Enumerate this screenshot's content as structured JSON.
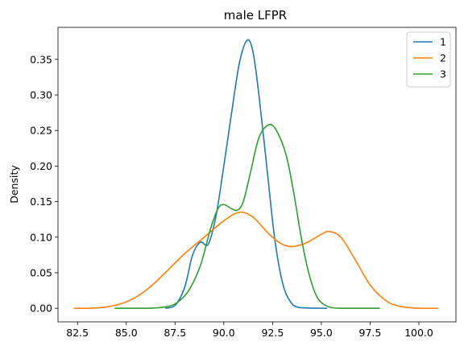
{
  "chart_data": {
    "type": "line",
    "title": "male LFPR",
    "xlabel": "",
    "ylabel": "Density",
    "xlim": [
      81.5,
      101.9
    ],
    "ylim": [
      -0.019,
      0.395
    ],
    "x_ticks": [
      82.5,
      85.0,
      87.5,
      90.0,
      92.5,
      95.0,
      97.5,
      100.0
    ],
    "x_tick_labels": [
      "82.5",
      "85.0",
      "87.5",
      "90.0",
      "92.5",
      "95.0",
      "97.5",
      "100.0"
    ],
    "y_ticks": [
      0.0,
      0.05,
      0.1,
      0.15,
      0.2,
      0.25,
      0.3,
      0.35
    ],
    "y_tick_labels": [
      "0.00",
      "0.05",
      "0.10",
      "0.15",
      "0.20",
      "0.25",
      "0.30",
      "0.35"
    ],
    "grid": false,
    "legend_position": "top-right",
    "series": [
      {
        "name": "1",
        "color": "#1f77b4",
        "points": [
          [
            87.0,
            0.0
          ],
          [
            87.5,
            0.004
          ],
          [
            88.0,
            0.03
          ],
          [
            88.4,
            0.075
          ],
          [
            88.8,
            0.093
          ],
          [
            89.2,
            0.09
          ],
          [
            89.6,
            0.13
          ],
          [
            90.0,
            0.2
          ],
          [
            90.4,
            0.275
          ],
          [
            90.8,
            0.345
          ],
          [
            91.2,
            0.377
          ],
          [
            91.5,
            0.36
          ],
          [
            91.8,
            0.3
          ],
          [
            92.2,
            0.2
          ],
          [
            92.6,
            0.1
          ],
          [
            93.0,
            0.037
          ],
          [
            93.4,
            0.01
          ],
          [
            93.9,
            0.001
          ],
          [
            95.3,
            0.0
          ]
        ]
      },
      {
        "name": "2",
        "color": "#ff7f0e",
        "points": [
          [
            82.3,
            0.0
          ],
          [
            83.0,
            0.0
          ],
          [
            84.0,
            0.002
          ],
          [
            85.0,
            0.009
          ],
          [
            86.0,
            0.025
          ],
          [
            87.0,
            0.05
          ],
          [
            88.0,
            0.077
          ],
          [
            89.0,
            0.1
          ],
          [
            90.0,
            0.123
          ],
          [
            90.8,
            0.135
          ],
          [
            91.5,
            0.128
          ],
          [
            92.3,
            0.105
          ],
          [
            93.0,
            0.09
          ],
          [
            93.6,
            0.087
          ],
          [
            94.3,
            0.093
          ],
          [
            95.0,
            0.104
          ],
          [
            95.4,
            0.108
          ],
          [
            96.0,
            0.1
          ],
          [
            96.7,
            0.07
          ],
          [
            97.5,
            0.033
          ],
          [
            98.3,
            0.011
          ],
          [
            99.0,
            0.003
          ],
          [
            100.0,
            0.0
          ],
          [
            101.0,
            0.0
          ]
        ]
      },
      {
        "name": "3",
        "color": "#2ca02c",
        "points": [
          [
            84.4,
            0.0
          ],
          [
            86.0,
            0.0
          ],
          [
            87.0,
            0.002
          ],
          [
            87.6,
            0.008
          ],
          [
            88.2,
            0.025
          ],
          [
            88.8,
            0.06
          ],
          [
            89.3,
            0.11
          ],
          [
            89.7,
            0.14
          ],
          [
            90.0,
            0.146
          ],
          [
            90.4,
            0.14
          ],
          [
            90.7,
            0.138
          ],
          [
            91.0,
            0.15
          ],
          [
            91.4,
            0.195
          ],
          [
            91.8,
            0.24
          ],
          [
            92.3,
            0.258
          ],
          [
            92.7,
            0.25
          ],
          [
            93.2,
            0.215
          ],
          [
            93.6,
            0.16
          ],
          [
            94.0,
            0.095
          ],
          [
            94.4,
            0.045
          ],
          [
            94.8,
            0.015
          ],
          [
            95.3,
            0.003
          ],
          [
            96.0,
            0.0
          ],
          [
            98.0,
            0.0
          ]
        ]
      }
    ]
  }
}
